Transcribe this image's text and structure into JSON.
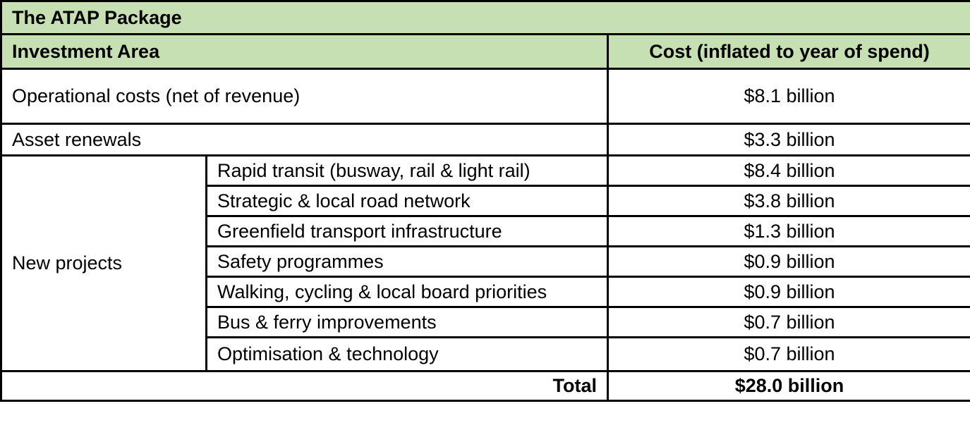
{
  "table": {
    "title": "The ATAP Package",
    "headers": {
      "investment_area": "Investment Area",
      "cost": "Cost (inflated to year of spend)"
    },
    "operational": {
      "label": "Operational costs (net of revenue)",
      "value": "$8.1 billion"
    },
    "asset_renewals": {
      "label": "Asset renewals",
      "value": "$3.3 billion"
    },
    "new_projects": {
      "label": "New projects",
      "items": [
        {
          "label": "Rapid transit (busway, rail & light rail)",
          "value": "$8.4 billion"
        },
        {
          "label": "Strategic & local road network",
          "value": "$3.8 billion"
        },
        {
          "label": "Greenfield transport infrastructure",
          "value": "$1.3 billion"
        },
        {
          "label": "Safety programmes",
          "value": "$0.9 billion"
        },
        {
          "label": "Walking, cycling & local board priorities",
          "value": "$0.9 billion"
        },
        {
          "label": "Bus & ferry improvements",
          "value": "$0.7 billion"
        },
        {
          "label": "Optimisation & technology",
          "value": "$0.7 billion"
        }
      ]
    },
    "total": {
      "label": "Total",
      "value": "$28.0 billion"
    }
  },
  "colors": {
    "header_fill": "#c6e0b4",
    "border": "#000000"
  }
}
